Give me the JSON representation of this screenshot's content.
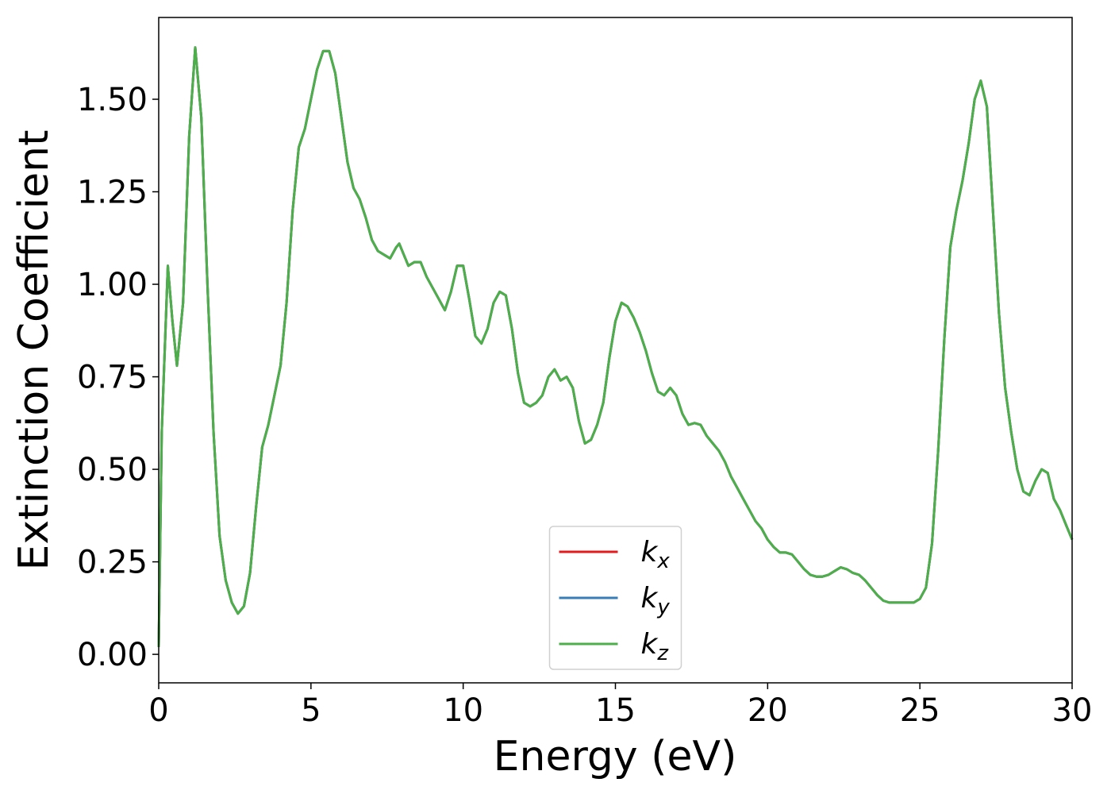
{
  "chart_data": {
    "type": "line",
    "xlabel": "Energy (eV)",
    "ylabel": "Extinction Coefficient",
    "xlim": [
      0,
      30
    ],
    "ylim": [
      -0.077,
      1.721
    ],
    "xticks": [
      0,
      5,
      10,
      15,
      20,
      25,
      30
    ],
    "yticks": [
      {
        "value": 0,
        "label": "0.00"
      },
      {
        "value": 0.25,
        "label": "0.25"
      },
      {
        "value": 0.5,
        "label": "0.50"
      },
      {
        "value": 0.75,
        "label": "0.75"
      },
      {
        "value": 1.0,
        "label": "1.00"
      },
      {
        "value": 1.25,
        "label": "1.25"
      },
      {
        "value": 1.5,
        "label": "1.50"
      }
    ],
    "legend": "lower center",
    "x": [
      0,
      0.1,
      0.3,
      0.45,
      0.6,
      0.8,
      1.0,
      1.2,
      1.4,
      1.6,
      1.8,
      2.0,
      2.2,
      2.4,
      2.6,
      2.8,
      3.0,
      3.2,
      3.4,
      3.6,
      3.8,
      4.0,
      4.2,
      4.4,
      4.6,
      4.8,
      5.0,
      5.2,
      5.4,
      5.6,
      5.8,
      6.0,
      6.2,
      6.4,
      6.6,
      6.8,
      7.0,
      7.2,
      7.4,
      7.6,
      7.8,
      7.9,
      8.0,
      8.2,
      8.4,
      8.6,
      8.8,
      9.0,
      9.2,
      9.4,
      9.6,
      9.8,
      10.0,
      10.2,
      10.4,
      10.6,
      10.8,
      11.0,
      11.2,
      11.4,
      11.6,
      11.8,
      12.0,
      12.2,
      12.4,
      12.6,
      12.8,
      13.0,
      13.2,
      13.4,
      13.6,
      13.8,
      14.0,
      14.2,
      14.4,
      14.6,
      14.8,
      15.0,
      15.2,
      15.4,
      15.6,
      15.8,
      16.0,
      16.2,
      16.4,
      16.6,
      16.8,
      17.0,
      17.2,
      17.4,
      17.6,
      17.8,
      18.0,
      18.2,
      18.4,
      18.6,
      18.8,
      19.0,
      19.2,
      19.4,
      19.6,
      19.8,
      20.0,
      20.2,
      20.4,
      20.6,
      20.8,
      21.0,
      21.2,
      21.4,
      21.6,
      21.8,
      22.0,
      22.2,
      22.4,
      22.6,
      22.8,
      23.0,
      23.2,
      23.4,
      23.6,
      23.8,
      24.0,
      24.4,
      24.8,
      25.0,
      25.2,
      25.4,
      25.6,
      25.8,
      26.0,
      26.2,
      26.4,
      26.6,
      26.8,
      27.0,
      27.2,
      27.4,
      27.6,
      27.8,
      28.0,
      28.2,
      28.4,
      28.6,
      28.8,
      29.0,
      29.2,
      29.4,
      29.6,
      29.8,
      30.0
    ],
    "series": [
      {
        "name": "kx",
        "color": "#e41a1c",
        "values": [
          0.02,
          0.6,
          1.05,
          0.9,
          0.78,
          0.95,
          1.4,
          1.64,
          1.45,
          1.0,
          0.6,
          0.32,
          0.2,
          0.14,
          0.11,
          0.13,
          0.22,
          0.4,
          0.56,
          0.62,
          0.7,
          0.78,
          0.95,
          1.2,
          1.37,
          1.42,
          1.5,
          1.58,
          1.63,
          1.63,
          1.57,
          1.45,
          1.33,
          1.26,
          1.23,
          1.18,
          1.12,
          1.09,
          1.08,
          1.07,
          1.1,
          1.11,
          1.09,
          1.05,
          1.06,
          1.06,
          1.02,
          0.99,
          0.96,
          0.93,
          0.98,
          1.05,
          1.05,
          0.96,
          0.86,
          0.84,
          0.88,
          0.95,
          0.98,
          0.97,
          0.88,
          0.76,
          0.68,
          0.67,
          0.68,
          0.7,
          0.75,
          0.77,
          0.74,
          0.75,
          0.72,
          0.63,
          0.57,
          0.58,
          0.62,
          0.68,
          0.8,
          0.9,
          0.95,
          0.94,
          0.91,
          0.87,
          0.82,
          0.76,
          0.71,
          0.7,
          0.72,
          0.7,
          0.65,
          0.62,
          0.625,
          0.62,
          0.59,
          0.57,
          0.55,
          0.52,
          0.48,
          0.45,
          0.42,
          0.39,
          0.36,
          0.34,
          0.31,
          0.29,
          0.275,
          0.275,
          0.27,
          0.25,
          0.23,
          0.215,
          0.21,
          0.21,
          0.215,
          0.225,
          0.235,
          0.23,
          0.22,
          0.215,
          0.2,
          0.18,
          0.16,
          0.145,
          0.14,
          0.14,
          0.14,
          0.15,
          0.18,
          0.3,
          0.55,
          0.85,
          1.1,
          1.2,
          1.28,
          1.38,
          1.5,
          1.55,
          1.48,
          1.2,
          0.92,
          0.72,
          0.6,
          0.5,
          0.44,
          0.43,
          0.47,
          0.5,
          0.49,
          0.42,
          0.39,
          0.35,
          0.31
        ]
      },
      {
        "name": "ky",
        "color": "#377eb8",
        "values": [
          0.02,
          0.6,
          1.05,
          0.9,
          0.78,
          0.95,
          1.4,
          1.64,
          1.45,
          1.0,
          0.6,
          0.32,
          0.2,
          0.14,
          0.11,
          0.13,
          0.22,
          0.4,
          0.56,
          0.62,
          0.7,
          0.78,
          0.95,
          1.2,
          1.37,
          1.42,
          1.5,
          1.58,
          1.63,
          1.63,
          1.57,
          1.45,
          1.33,
          1.26,
          1.23,
          1.18,
          1.12,
          1.09,
          1.08,
          1.07,
          1.1,
          1.11,
          1.09,
          1.05,
          1.06,
          1.06,
          1.02,
          0.99,
          0.96,
          0.93,
          0.98,
          1.05,
          1.05,
          0.96,
          0.86,
          0.84,
          0.88,
          0.95,
          0.98,
          0.97,
          0.88,
          0.76,
          0.68,
          0.67,
          0.68,
          0.7,
          0.75,
          0.77,
          0.74,
          0.75,
          0.72,
          0.63,
          0.57,
          0.58,
          0.62,
          0.68,
          0.8,
          0.9,
          0.95,
          0.94,
          0.91,
          0.87,
          0.82,
          0.76,
          0.71,
          0.7,
          0.72,
          0.7,
          0.65,
          0.62,
          0.625,
          0.62,
          0.59,
          0.57,
          0.55,
          0.52,
          0.48,
          0.45,
          0.42,
          0.39,
          0.36,
          0.34,
          0.31,
          0.29,
          0.275,
          0.275,
          0.27,
          0.25,
          0.23,
          0.215,
          0.21,
          0.21,
          0.215,
          0.225,
          0.235,
          0.23,
          0.22,
          0.215,
          0.2,
          0.18,
          0.16,
          0.145,
          0.14,
          0.14,
          0.14,
          0.15,
          0.18,
          0.3,
          0.55,
          0.85,
          1.1,
          1.2,
          1.28,
          1.38,
          1.5,
          1.55,
          1.48,
          1.2,
          0.92,
          0.72,
          0.6,
          0.5,
          0.44,
          0.43,
          0.47,
          0.5,
          0.49,
          0.42,
          0.39,
          0.35,
          0.31
        ]
      },
      {
        "name": "kz",
        "color": "#4daf4a",
        "values": [
          0.02,
          0.6,
          1.05,
          0.9,
          0.78,
          0.95,
          1.4,
          1.64,
          1.45,
          1.0,
          0.6,
          0.32,
          0.2,
          0.14,
          0.11,
          0.13,
          0.22,
          0.4,
          0.56,
          0.62,
          0.7,
          0.78,
          0.95,
          1.2,
          1.37,
          1.42,
          1.5,
          1.58,
          1.63,
          1.63,
          1.57,
          1.45,
          1.33,
          1.26,
          1.23,
          1.18,
          1.12,
          1.09,
          1.08,
          1.07,
          1.1,
          1.11,
          1.09,
          1.05,
          1.06,
          1.06,
          1.02,
          0.99,
          0.96,
          0.93,
          0.98,
          1.05,
          1.05,
          0.96,
          0.86,
          0.84,
          0.88,
          0.95,
          0.98,
          0.97,
          0.88,
          0.76,
          0.68,
          0.67,
          0.68,
          0.7,
          0.75,
          0.77,
          0.74,
          0.75,
          0.72,
          0.63,
          0.57,
          0.58,
          0.62,
          0.68,
          0.8,
          0.9,
          0.95,
          0.94,
          0.91,
          0.87,
          0.82,
          0.76,
          0.71,
          0.7,
          0.72,
          0.7,
          0.65,
          0.62,
          0.625,
          0.62,
          0.59,
          0.57,
          0.55,
          0.52,
          0.48,
          0.45,
          0.42,
          0.39,
          0.36,
          0.34,
          0.31,
          0.29,
          0.275,
          0.275,
          0.27,
          0.25,
          0.23,
          0.215,
          0.21,
          0.21,
          0.215,
          0.225,
          0.235,
          0.23,
          0.22,
          0.215,
          0.2,
          0.18,
          0.16,
          0.145,
          0.14,
          0.14,
          0.14,
          0.15,
          0.18,
          0.3,
          0.55,
          0.85,
          1.1,
          1.2,
          1.28,
          1.38,
          1.5,
          1.55,
          1.48,
          1.2,
          0.92,
          0.72,
          0.6,
          0.5,
          0.44,
          0.43,
          0.47,
          0.5,
          0.49,
          0.42,
          0.39,
          0.35,
          0.31
        ]
      }
    ]
  }
}
